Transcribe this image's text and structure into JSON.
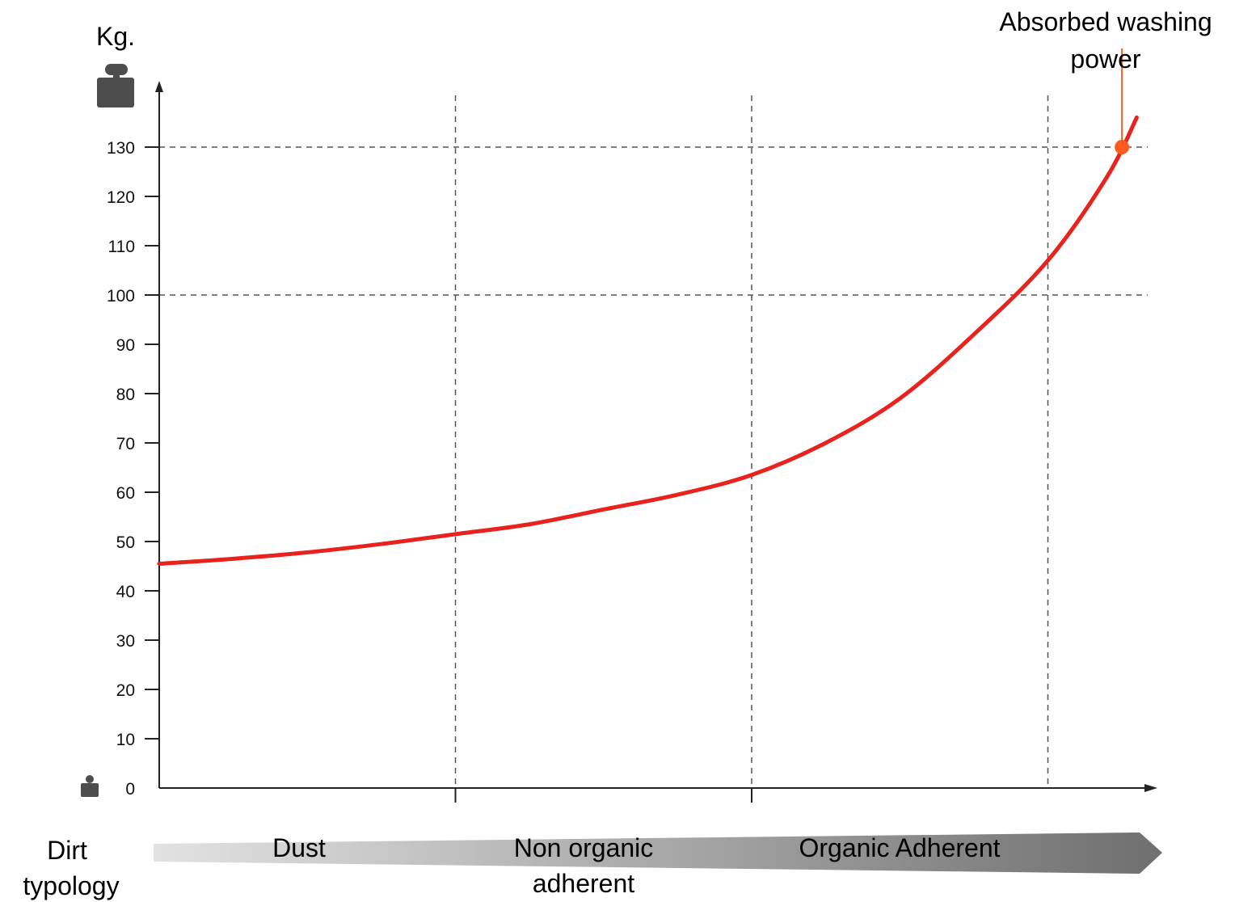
{
  "chart_data": {
    "type": "line",
    "ylabel": "Kg.",
    "xlabel": "Dirt typology",
    "ylim": [
      0,
      130
    ],
    "yticks": [
      0,
      10,
      20,
      30,
      40,
      50,
      60,
      70,
      80,
      90,
      100,
      110,
      120,
      130
    ],
    "xlim": [
      0,
      3.3
    ],
    "x_region_boundaries": [
      1,
      2,
      3
    ],
    "categories": [
      "Dust",
      "Non organic adherent",
      "Organic Adherent"
    ],
    "grid": {
      "horizontal_at": [
        100,
        130
      ],
      "vertical_at": [
        1,
        2,
        3
      ],
      "style": "dashed"
    },
    "series": [
      {
        "x": [
          0,
          0.25,
          0.5,
          0.75,
          1.0,
          1.25,
          1.5,
          1.75,
          2.0,
          2.25,
          2.5,
          2.75,
          3.0,
          3.2,
          3.3
        ],
        "values": [
          45.5,
          46.5,
          47.8,
          49.5,
          51.5,
          53.5,
          56.5,
          59.5,
          63.5,
          70,
          79,
          92,
          107,
          124,
          136
        ]
      }
    ],
    "annotation": {
      "text": "Absorbed washing power",
      "x": 3.25,
      "y": 130,
      "color": "#ff5a1f"
    },
    "colors": {
      "line": "#e8221c",
      "marker": "#ff5a1f",
      "axis": "#222222",
      "grid": "#555555",
      "weight_icon": "#4d4d4d"
    },
    "icons": {
      "axis_top": "weight-icon",
      "axis_bottom": "small-weight-icon"
    }
  }
}
